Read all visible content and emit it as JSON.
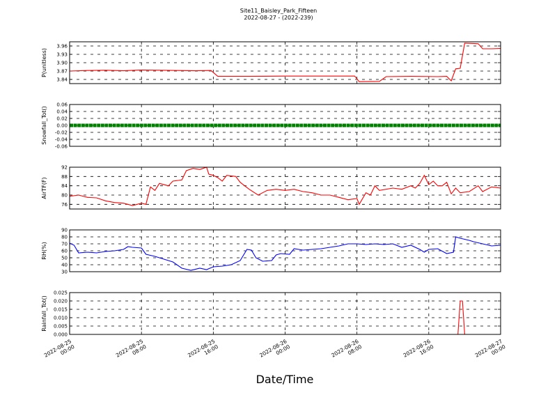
{
  "figure": {
    "title_line1": "Site11_Baisley_Park_Fifteen",
    "title_line2": "2022-08-27 - (2022-239)",
    "xlabel": "Date/Time"
  },
  "chart_data": {
    "type": "line",
    "x_range": [
      "2022-08-25 00:00",
      "2022-08-27 00:00"
    ],
    "x_ticks": [
      {
        "line1": "2022-08-25",
        "line2": "00:00",
        "t": "2022-08-25 00:00"
      },
      {
        "line1": "2022-08-25",
        "line2": "08:00",
        "t": "2022-08-25 08:00"
      },
      {
        "line1": "2022-08-25",
        "line2": "16:00",
        "t": "2022-08-25 16:00"
      },
      {
        "line1": "2022-08-26",
        "line2": "00:00",
        "t": "2022-08-26 00:00"
      },
      {
        "line1": "2022-08-26",
        "line2": "08:00",
        "t": "2022-08-26 08:00"
      },
      {
        "line1": "2022-08-26",
        "line2": "16:00",
        "t": "2022-08-26 16:00"
      },
      {
        "line1": "2022-08-27",
        "line2": "00:00",
        "t": "2022-08-27 00:00"
      }
    ],
    "grid": true,
    "panels": [
      {
        "ylabel": "P(unitless)",
        "ylim": [
          3.825,
          3.975
        ],
        "yticks": [
          "3.84",
          "3.87",
          "3.90",
          "3.93",
          "3.96"
        ],
        "color": "#ff0000",
        "style": "line",
        "points": [
          [
            "2022-08-25 00:00",
            3.87
          ],
          [
            "2022-08-25 02:00",
            3.872
          ],
          [
            "2022-08-25 04:00",
            3.873
          ],
          [
            "2022-08-25 06:00",
            3.871
          ],
          [
            "2022-08-25 08:00",
            3.874
          ],
          [
            "2022-08-25 10:00",
            3.873
          ],
          [
            "2022-08-25 12:00",
            3.872
          ],
          [
            "2022-08-25 14:00",
            3.871
          ],
          [
            "2022-08-25 15:45",
            3.872
          ],
          [
            "2022-08-25 16:30",
            3.851
          ],
          [
            "2022-08-25 20:00",
            3.851
          ],
          [
            "2022-08-26 00:00",
            3.852
          ],
          [
            "2022-08-26 04:00",
            3.852
          ],
          [
            "2022-08-26 07:45",
            3.852
          ],
          [
            "2022-08-26 08:15",
            3.832
          ],
          [
            "2022-08-26 10:30",
            3.833
          ],
          [
            "2022-08-26 11:15",
            3.85
          ],
          [
            "2022-08-26 14:00",
            3.851
          ],
          [
            "2022-08-26 17:00",
            3.85
          ],
          [
            "2022-08-26 18:00",
            3.851
          ],
          [
            "2022-08-26 18:30",
            3.835
          ],
          [
            "2022-08-26 19:00",
            3.878
          ],
          [
            "2022-08-26 19:30",
            3.88
          ],
          [
            "2022-08-26 20:00",
            3.97
          ],
          [
            "2022-08-26 21:00",
            3.969
          ],
          [
            "2022-08-26 21:30",
            3.968
          ],
          [
            "2022-08-26 22:00",
            3.95
          ],
          [
            "2022-08-26 23:00",
            3.95
          ],
          [
            "2022-08-27 00:00",
            3.951
          ]
        ]
      },
      {
        "ylabel": "Snowfall_Tot()",
        "ylim": [
          -0.06,
          0.06
        ],
        "yticks": [
          "-0.06",
          "-0.04",
          "-0.02",
          "0.00",
          "0.02",
          "0.04",
          "0.06"
        ],
        "color": "#008000",
        "style": "dots",
        "points": [
          [
            "2022-08-25 00:00",
            0.0
          ],
          [
            "2022-08-27 00:00",
            0.0
          ]
        ]
      },
      {
        "ylabel": "AirTF(F)",
        "ylim": [
          74,
          92
        ],
        "yticks": [
          "76",
          "80",
          "84",
          "88",
          "92"
        ],
        "color": "#ff0000",
        "style": "line",
        "points": [
          [
            "2022-08-25 00:00",
            79.5
          ],
          [
            "2022-08-25 01:00",
            80.0
          ],
          [
            "2022-08-25 02:00",
            79.0
          ],
          [
            "2022-08-25 03:00",
            78.8
          ],
          [
            "2022-08-25 04:00",
            77.5
          ],
          [
            "2022-08-25 05:00",
            76.8
          ],
          [
            "2022-08-25 06:00",
            76.5
          ],
          [
            "2022-08-25 07:00",
            75.5
          ],
          [
            "2022-08-25 08:00",
            76.5
          ],
          [
            "2022-08-25 08:30",
            76.0
          ],
          [
            "2022-08-25 09:00",
            83.5
          ],
          [
            "2022-08-25 09:30",
            82.0
          ],
          [
            "2022-08-25 10:00",
            85.0
          ],
          [
            "2022-08-25 11:00",
            84.0
          ],
          [
            "2022-08-25 11:30",
            86.0
          ],
          [
            "2022-08-25 12:30",
            86.5
          ],
          [
            "2022-08-25 13:00",
            90.5
          ],
          [
            "2022-08-25 13:45",
            91.5
          ],
          [
            "2022-08-25 14:30",
            91.0
          ],
          [
            "2022-08-25 15:15",
            92.0
          ],
          [
            "2022-08-25 15:30",
            89.0
          ],
          [
            "2022-08-25 16:00",
            88.5
          ],
          [
            "2022-08-25 16:30",
            87.5
          ],
          [
            "2022-08-25 17:00",
            86.0
          ],
          [
            "2022-08-25 17:30",
            88.5
          ],
          [
            "2022-08-25 18:30",
            88.0
          ],
          [
            "2022-08-25 19:00",
            85.5
          ],
          [
            "2022-08-25 20:00",
            82.5
          ],
          [
            "2022-08-25 21:00",
            80.0
          ],
          [
            "2022-08-25 22:00",
            82.0
          ],
          [
            "2022-08-25 23:00",
            82.5
          ],
          [
            "2022-08-26 00:00",
            82.0
          ],
          [
            "2022-08-26 01:00",
            82.5
          ],
          [
            "2022-08-26 02:00",
            81.5
          ],
          [
            "2022-08-26 03:00",
            81.0
          ],
          [
            "2022-08-26 04:00",
            80.0
          ],
          [
            "2022-08-26 05:00",
            80.0
          ],
          [
            "2022-08-26 06:00",
            79.0
          ],
          [
            "2022-08-26 07:00",
            78.0
          ],
          [
            "2022-08-26 08:00",
            78.5
          ],
          [
            "2022-08-26 08:15",
            76.0
          ],
          [
            "2022-08-26 09:00",
            81.0
          ],
          [
            "2022-08-26 09:30",
            80.0
          ],
          [
            "2022-08-26 10:00",
            84.0
          ],
          [
            "2022-08-26 10:30",
            82.0
          ],
          [
            "2022-08-26 12:00",
            83.0
          ],
          [
            "2022-08-26 13:00",
            82.5
          ],
          [
            "2022-08-26 14:00",
            84.0
          ],
          [
            "2022-08-26 14:30",
            83.0
          ],
          [
            "2022-08-26 15:00",
            85.0
          ],
          [
            "2022-08-26 15:30",
            88.5
          ],
          [
            "2022-08-26 16:00",
            84.5
          ],
          [
            "2022-08-26 16:30",
            86.0
          ],
          [
            "2022-08-26 17:00",
            84.0
          ],
          [
            "2022-08-26 17:30",
            84.0
          ],
          [
            "2022-08-26 18:00",
            85.5
          ],
          [
            "2022-08-26 18:30",
            80.5
          ],
          [
            "2022-08-26 19:00",
            83.0
          ],
          [
            "2022-08-26 19:30",
            81.0
          ],
          [
            "2022-08-26 20:30",
            81.5
          ],
          [
            "2022-08-26 21:30",
            84.0
          ],
          [
            "2022-08-26 22:00",
            81.5
          ],
          [
            "2022-08-26 23:00",
            83.5
          ],
          [
            "2022-08-27 00:00",
            83.0
          ]
        ]
      },
      {
        "ylabel": "RH(%)",
        "ylim": [
          30,
          90
        ],
        "yticks": [
          "30",
          "40",
          "50",
          "60",
          "70",
          "80",
          "90"
        ],
        "color": "#0000ff",
        "style": "line",
        "points": [
          [
            "2022-08-25 00:00",
            71
          ],
          [
            "2022-08-25 00:30",
            68
          ],
          [
            "2022-08-25 01:00",
            57
          ],
          [
            "2022-08-25 02:00",
            58
          ],
          [
            "2022-08-25 03:00",
            57
          ],
          [
            "2022-08-25 04:00",
            59
          ],
          [
            "2022-08-25 05:00",
            60
          ],
          [
            "2022-08-25 06:00",
            62
          ],
          [
            "2022-08-25 06:30",
            66
          ],
          [
            "2022-08-25 07:00",
            65
          ],
          [
            "2022-08-25 08:00",
            64
          ],
          [
            "2022-08-25 08:30",
            55
          ],
          [
            "2022-08-25 09:30",
            52
          ],
          [
            "2022-08-25 10:30",
            48
          ],
          [
            "2022-08-25 11:30",
            44
          ],
          [
            "2022-08-25 12:30",
            35
          ],
          [
            "2022-08-25 13:30",
            32
          ],
          [
            "2022-08-25 14:30",
            35
          ],
          [
            "2022-08-25 15:15",
            33
          ],
          [
            "2022-08-25 16:00",
            37
          ],
          [
            "2022-08-25 17:00",
            38
          ],
          [
            "2022-08-25 18:00",
            40
          ],
          [
            "2022-08-25 19:00",
            46
          ],
          [
            "2022-08-25 19:45",
            62
          ],
          [
            "2022-08-25 20:15",
            61
          ],
          [
            "2022-08-25 20:45",
            50
          ],
          [
            "2022-08-25 21:30",
            45
          ],
          [
            "2022-08-25 22:30",
            46
          ],
          [
            "2022-08-25 23:00",
            54
          ],
          [
            "2022-08-25 23:30",
            56
          ],
          [
            "2022-08-26 00:30",
            55
          ],
          [
            "2022-08-26 01:00",
            63
          ],
          [
            "2022-08-26 02:00",
            61
          ],
          [
            "2022-08-26 03:00",
            62
          ],
          [
            "2022-08-26 04:00",
            63
          ],
          [
            "2022-08-26 05:00",
            65
          ],
          [
            "2022-08-26 06:00",
            67
          ],
          [
            "2022-08-26 07:00",
            70
          ],
          [
            "2022-08-26 08:00",
            70
          ],
          [
            "2022-08-26 09:00",
            69
          ],
          [
            "2022-08-26 10:00",
            70
          ],
          [
            "2022-08-26 11:00",
            69
          ],
          [
            "2022-08-26 12:00",
            70
          ],
          [
            "2022-08-26 13:00",
            65
          ],
          [
            "2022-08-26 14:00",
            68
          ],
          [
            "2022-08-26 15:00",
            62
          ],
          [
            "2022-08-26 15:30",
            58
          ],
          [
            "2022-08-26 16:00",
            62
          ],
          [
            "2022-08-26 17:00",
            63
          ],
          [
            "2022-08-26 18:00",
            56
          ],
          [
            "2022-08-26 18:45",
            58
          ],
          [
            "2022-08-26 19:00",
            80
          ],
          [
            "2022-08-26 19:30",
            78
          ],
          [
            "2022-08-26 20:30",
            75
          ],
          [
            "2022-08-26 21:00",
            73
          ],
          [
            "2022-08-26 22:00",
            70
          ],
          [
            "2022-08-26 23:00",
            67
          ],
          [
            "2022-08-27 00:00",
            68
          ]
        ]
      },
      {
        "ylabel": "Rainfall_Tot()",
        "ylim": [
          0,
          0.025
        ],
        "yticks": [
          "0.000",
          "0.005",
          "0.010",
          "0.015",
          "0.020",
          "0.025"
        ],
        "color": "#ff0000",
        "style": "line",
        "points": [
          [
            "2022-08-25 00:00",
            0
          ],
          [
            "2022-08-26 19:15",
            0
          ],
          [
            "2022-08-26 19:30",
            0.02
          ],
          [
            "2022-08-26 19:45",
            0.02
          ],
          [
            "2022-08-26 20:00",
            0
          ],
          [
            "2022-08-27 00:00",
            0
          ]
        ]
      }
    ]
  }
}
